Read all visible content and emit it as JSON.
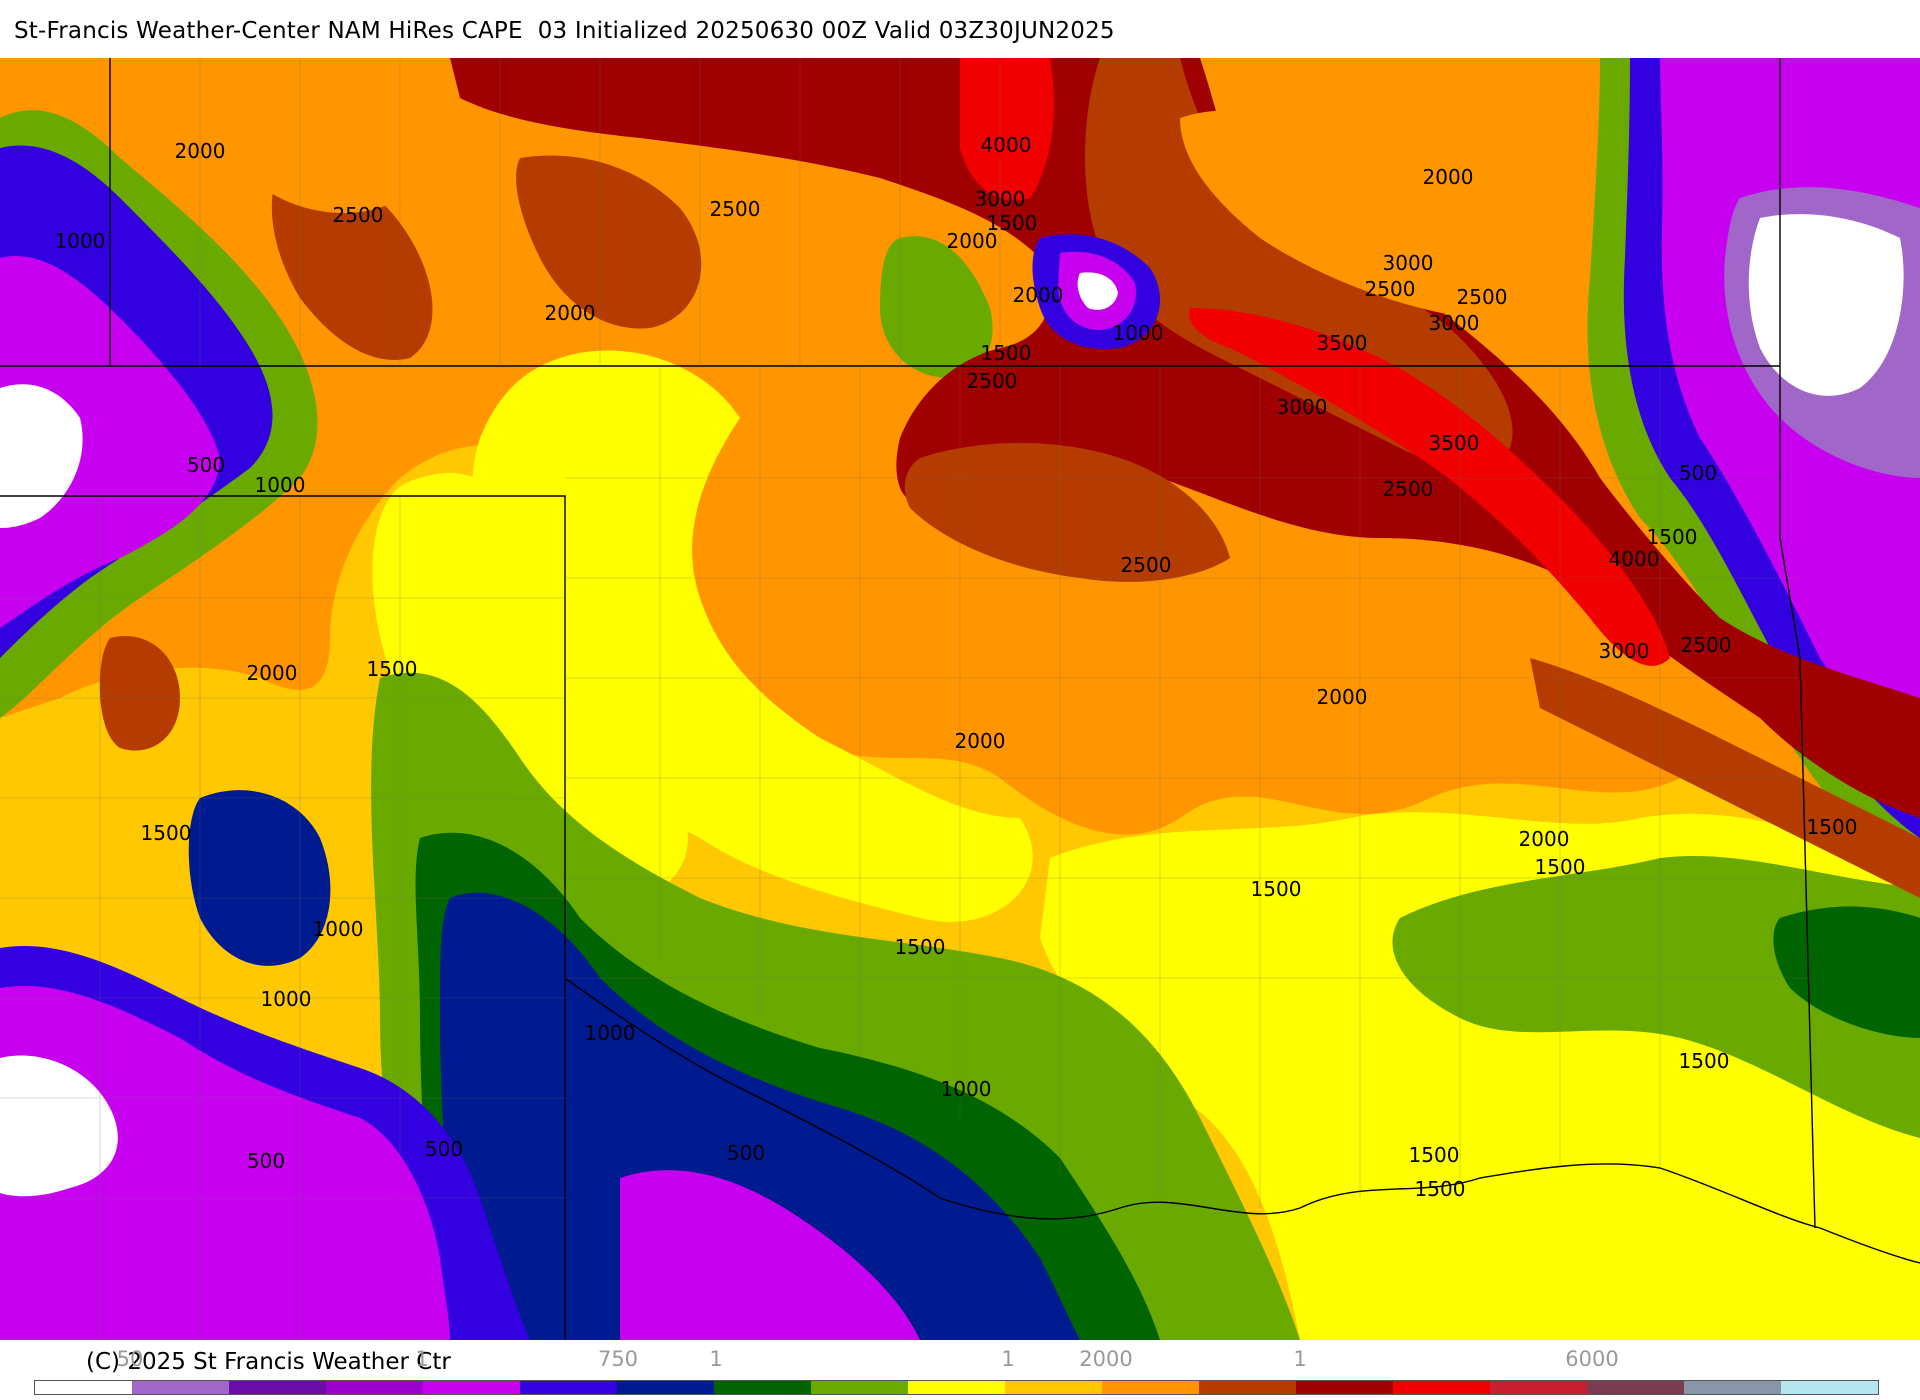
{
  "title": "St-Francis Weather-Center NAM HiRes CAPE  03 Initialized 20250630 00Z Valid 03Z30JUN2025",
  "copyright": "(C) 2025 St Francis Weather Ctr",
  "scale_ticks": [
    {
      "label": "50"
    },
    {
      "label": "1"
    },
    {
      "label": "750"
    },
    {
      "label": "1"
    },
    {
      "label": "1"
    },
    {
      "label": "2000"
    },
    {
      "label": "1"
    },
    {
      "label": "6000"
    }
  ],
  "scale_colors": [
    "#ffffff",
    "#a066c8",
    "#6a0ca8",
    "#9900cc",
    "#c800f0",
    "#3300e0",
    "#001a90",
    "#006400",
    "#6aaa00",
    "#ffff00",
    "#ffc800",
    "#ff9600",
    "#b43c00",
    "#a00000",
    "#f00000",
    "#c81e32",
    "#7a3c50",
    "#8896a8",
    "#b4e6f0"
  ],
  "contour_labels": [
    {
      "text": "2000"
    },
    {
      "text": "2500"
    },
    {
      "text": "1000"
    },
    {
      "text": "2000"
    },
    {
      "text": "2500"
    },
    {
      "text": "4000"
    },
    {
      "text": "3000"
    },
    {
      "text": "1500"
    },
    {
      "text": "2000"
    },
    {
      "text": "2000"
    },
    {
      "text": "1000"
    },
    {
      "text": "1500"
    },
    {
      "text": "2500"
    },
    {
      "text": "2000"
    },
    {
      "text": "3000"
    },
    {
      "text": "2500"
    },
    {
      "text": "2500"
    },
    {
      "text": "3000"
    },
    {
      "text": "3500"
    },
    {
      "text": "3000"
    },
    {
      "text": "3500"
    },
    {
      "text": "2500"
    },
    {
      "text": "500"
    },
    {
      "text": "1500"
    },
    {
      "text": "4000"
    },
    {
      "text": "2500"
    },
    {
      "text": "3000"
    },
    {
      "text": "2500"
    },
    {
      "text": "500"
    },
    {
      "text": "1000"
    },
    {
      "text": "2000"
    },
    {
      "text": "1500"
    },
    {
      "text": "2000"
    },
    {
      "text": "2000"
    },
    {
      "text": "1500"
    },
    {
      "text": "1000"
    },
    {
      "text": "1000"
    },
    {
      "text": "1500"
    },
    {
      "text": "1500"
    },
    {
      "text": "2000"
    },
    {
      "text": "1500"
    },
    {
      "text": "1500"
    },
    {
      "text": "1000"
    },
    {
      "text": "1000"
    },
    {
      "text": "1500"
    },
    {
      "text": "500"
    },
    {
      "text": "500"
    },
    {
      "text": "500"
    },
    {
      "text": "1500"
    },
    {
      "text": "1500"
    }
  ]
}
